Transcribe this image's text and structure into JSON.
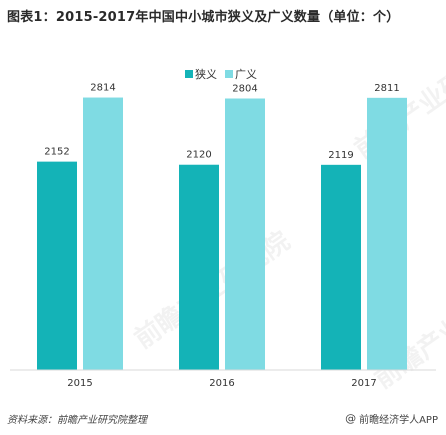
{
  "title": "图表1：2015-2017年中国中小城市狭义及广义数量（单位：个）",
  "footer": {
    "source": "资料来源：前瞻产业研究院整理",
    "brand_symbol": "@",
    "brand": "前瞻经济学人APP"
  },
  "watermark": "前瞻产业研究院",
  "colors": {
    "narrow": "#14b3b7",
    "broad": "#7fdbe3"
  },
  "chart_data": {
    "type": "bar",
    "title": "图表1：2015-2017年中国中小城市狭义及广义数量（单位：个）",
    "categories": [
      "2015",
      "2016",
      "2017"
    ],
    "series": [
      {
        "name": "狭义",
        "values": [
          2152,
          2120,
          2119
        ],
        "color": "#14b3b7"
      },
      {
        "name": "广义",
        "values": [
          2814,
          2804,
          2811
        ],
        "color": "#7fdbe3"
      }
    ],
    "ylim": [
      0,
      3150
    ],
    "grid": false,
    "legend": "top-center",
    "data_labels": true
  }
}
